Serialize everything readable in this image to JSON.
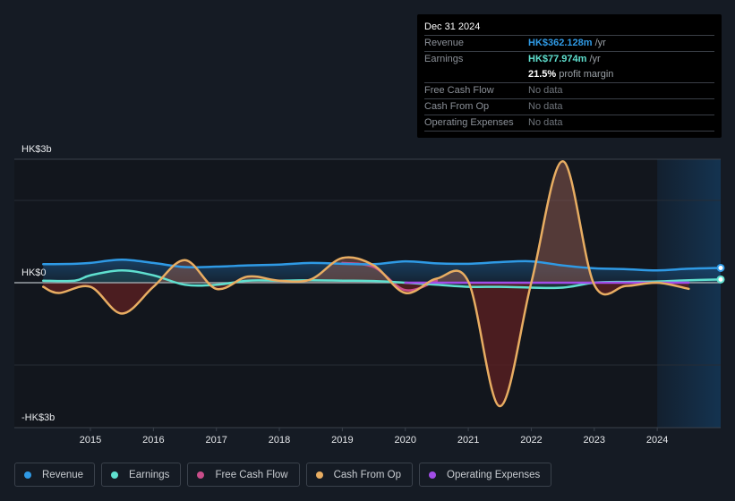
{
  "tooltip": {
    "date": "Dec 31 2024",
    "rows": [
      {
        "label": "Revenue",
        "value": "HK$362.128m",
        "unit": " /yr"
      },
      {
        "label": "Earnings",
        "value": "HK$77.974m",
        "unit": " /yr"
      },
      {
        "label": "",
        "value": "21.5%",
        "unit": " profit margin"
      },
      {
        "label": "Free Cash Flow",
        "value": "No data"
      },
      {
        "label": "Cash From Op",
        "value": "No data"
      },
      {
        "label": "Operating Expenses",
        "value": "No data"
      }
    ]
  },
  "legend": [
    {
      "label": "Revenue",
      "color": "#2f9ae5"
    },
    {
      "label": "Earnings",
      "color": "#5fe0cf"
    },
    {
      "label": "Free Cash Flow",
      "color": "#c94d8a"
    },
    {
      "label": "Cash From Op",
      "color": "#e8ad62"
    },
    {
      "label": "Operating Expenses",
      "color": "#a24de8"
    }
  ],
  "chart_data": {
    "type": "line",
    "title": "",
    "xlabel": "",
    "ylabel": "",
    "y_tick_labels": [
      "HK$3b",
      "HK$0",
      "-HK$3b"
    ],
    "y_ticks": [
      3,
      0,
      -3
    ],
    "ylim": [
      -3.5,
      3
    ],
    "xlim": [
      2013.8,
      2025.0
    ],
    "x_ticks": [
      2015,
      2016,
      2017,
      2018,
      2019,
      2020,
      2021,
      2022,
      2023,
      2024
    ],
    "x_tick_labels": [
      "2015",
      "2016",
      "2017",
      "2018",
      "2019",
      "2020",
      "2021",
      "2022",
      "2023",
      "2024"
    ],
    "forecast_start": 2024.0,
    "grid": true,
    "legend_position": "bottom",
    "series": [
      {
        "name": "Revenue",
        "color": "#2f9ae5",
        "x": [
          2014.25,
          2014.75,
          2015.0,
          2015.5,
          2016.0,
          2016.5,
          2017.0,
          2017.5,
          2018.0,
          2018.5,
          2019.0,
          2019.5,
          2020.0,
          2020.5,
          2021.0,
          2021.5,
          2022.0,
          2022.5,
          2023.0,
          2023.5,
          2024.0,
          2024.5,
          2025.0
        ],
        "y": [
          0.45,
          0.46,
          0.48,
          0.56,
          0.48,
          0.38,
          0.39,
          0.42,
          0.44,
          0.48,
          0.46,
          0.45,
          0.52,
          0.47,
          0.46,
          0.5,
          0.52,
          0.42,
          0.35,
          0.33,
          0.3,
          0.34,
          0.36
        ]
      },
      {
        "name": "Earnings",
        "color": "#5fe0cf",
        "x": [
          2014.25,
          2014.75,
          2015.0,
          2015.5,
          2016.0,
          2016.5,
          2017.0,
          2017.5,
          2018.0,
          2018.5,
          2019.0,
          2019.5,
          2020.0,
          2020.5,
          2021.0,
          2021.5,
          2022.0,
          2022.5,
          2023.0,
          2023.5,
          2024.0,
          2024.5,
          2025.0
        ],
        "y": [
          0.05,
          0.05,
          0.18,
          0.3,
          0.18,
          -0.05,
          -0.05,
          0.05,
          0.05,
          0.06,
          0.05,
          0.04,
          0.0,
          -0.05,
          -0.1,
          -0.1,
          -0.12,
          -0.12,
          0.0,
          0.02,
          0.03,
          0.06,
          0.08
        ]
      },
      {
        "name": "Free Cash Flow",
        "color": "#c94d8a",
        "x": [
          2019.0,
          2019.5,
          2020.0,
          2020.5
        ],
        "y": [
          0.48,
          0.38,
          -0.18,
          0.05
        ]
      },
      {
        "name": "Cash From Op",
        "color": "#e8ad62",
        "x": [
          2014.25,
          2014.5,
          2015.0,
          2015.5,
          2016.0,
          2016.5,
          2017.0,
          2017.5,
          2018.0,
          2018.5,
          2019.0,
          2019.5,
          2020.0,
          2020.5,
          2021.0,
          2021.5,
          2022.0,
          2022.5,
          2023.0,
          2023.5,
          2024.0,
          2024.5
        ],
        "y": [
          -0.1,
          -0.25,
          -0.1,
          -0.75,
          -0.1,
          0.55,
          -0.15,
          0.15,
          0.05,
          0.08,
          0.6,
          0.42,
          -0.25,
          0.1,
          0.03,
          -3.0,
          0.0,
          2.95,
          -0.05,
          -0.08,
          0.0,
          -0.15
        ]
      },
      {
        "name": "Operating Expenses",
        "color": "#a24de8",
        "x": [
          2020.0,
          2020.5,
          2021.0,
          2021.5,
          2022.0,
          2022.5,
          2023.0,
          2023.5,
          2024.0,
          2024.5
        ],
        "y": [
          0.0,
          0.0,
          0.0,
          0.0,
          0.0,
          0.0,
          0.0,
          0.0,
          0.0,
          0.0
        ]
      }
    ]
  }
}
